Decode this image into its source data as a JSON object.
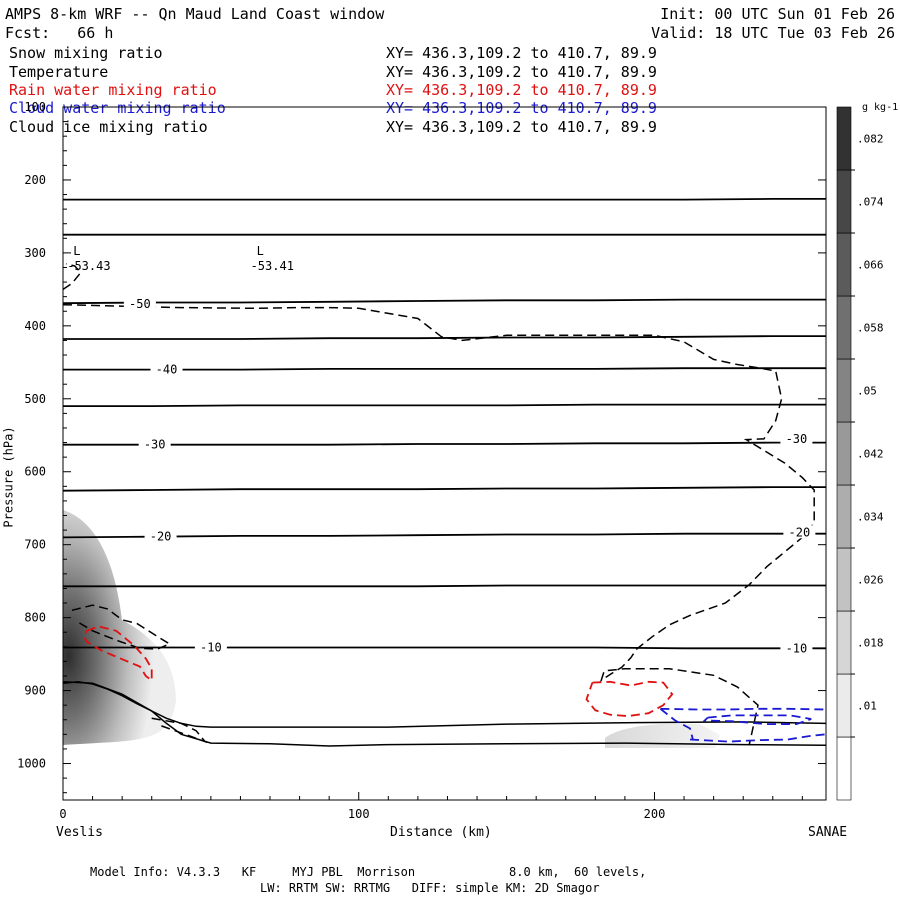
{
  "header": {
    "title": "AMPS 8-km WRF -- Qn Maud Land Coast window",
    "init": "Init: 00 UTC Sun 01 Feb 26",
    "fcst": "Fcst:   66 h",
    "valid": "Valid: 18 UTC Tue 03 Feb 26"
  },
  "fields": [
    {
      "name": "Snow mixing ratio",
      "xy": "XY= 436.3,109.2 to 410.7, 89.9",
      "color": "#000000"
    },
    {
      "name": "Temperature",
      "xy": "XY= 436.3,109.2 to 410.7, 89.9",
      "color": "#000000"
    },
    {
      "name": "Rain water mixing ratio",
      "xy": "XY= 436.3,109.2 to 410.7, 89.9",
      "color": "#e01010"
    },
    {
      "name": "Cloud water mixing ratio",
      "xy": "XY= 436.3,109.2 to 410.7, 89.9",
      "color": "#1a1ad0"
    },
    {
      "name": "Cloud ice mixing ratio",
      "xy": "XY= 436.3,109.2 to 410.7, 89.9",
      "color": "#000000"
    }
  ],
  "footer": {
    "line1": "Model Info: V4.3.3   KF     MYJ PBL  Morrison             8.0 km,  60 levels,",
    "line2": "LW: RRTM SW: RRTMG   DIFF: simple KM: 2D Smagor"
  },
  "chart_data": {
    "type": "cross-section",
    "ylabel": "Pressure (hPa)",
    "xlabel": "Distance (km)",
    "x_start_label": "Veslis",
    "x_end_label": "SANAE",
    "xlim": [
      0,
      258
    ],
    "ylim": [
      100,
      1050
    ],
    "yticks": [
      100,
      200,
      300,
      400,
      500,
      600,
      700,
      800,
      900,
      1000
    ],
    "xticks": [
      0,
      100,
      200
    ],
    "colorbar": {
      "unit": "g kg-1",
      "labels": [
        ".01",
        ".018",
        ".026",
        ".034",
        ".042",
        ".05",
        ".058",
        ".066",
        ".074",
        ".082"
      ]
    },
    "lows": [
      {
        "symbol": "L",
        "value": "-53.43",
        "x_km": 2,
        "p": 318
      },
      {
        "symbol": "L",
        "value": "-53.41",
        "x_km": 64,
        "p": 318
      }
    ],
    "temperature_isotherms_x": [
      0,
      30,
      60,
      90,
      120,
      150,
      180,
      210,
      240,
      258
    ],
    "temperature_isotherms": [
      {
        "p": [
          227,
          227,
          227,
          227,
          227,
          227,
          227,
          227,
          226,
          226
        ]
      },
      {
        "p": [
          275,
          275,
          275,
          275,
          275,
          275,
          275,
          275,
          275,
          275
        ]
      },
      {
        "p": [
          369,
          368,
          368,
          367,
          366,
          365,
          365,
          364,
          364,
          364
        ]
      },
      {
        "p": [
          418,
          418,
          418,
          417,
          417,
          416,
          416,
          415,
          414,
          414
        ]
      },
      {
        "p": [
          460,
          460,
          460,
          459,
          459,
          459,
          459,
          458,
          458,
          458
        ]
      },
      {
        "p": [
          510,
          510,
          509,
          509,
          509,
          509,
          508,
          508,
          508,
          508
        ]
      },
      {
        "p": [
          563,
          563,
          563,
          563,
          562,
          562,
          561,
          561,
          560,
          560
        ]
      },
      {
        "p": [
          626,
          625,
          624,
          624,
          624,
          623,
          623,
          622,
          621,
          621
        ]
      },
      {
        "p": [
          690,
          689,
          688,
          688,
          687,
          686,
          686,
          685,
          685,
          685
        ]
      },
      {
        "p": [
          757,
          757,
          757,
          757,
          757,
          756,
          756,
          756,
          756,
          756
        ]
      },
      {
        "p": [
          841,
          841,
          841,
          841,
          841,
          841,
          841,
          842,
          842,
          842
        ]
      }
    ],
    "temperature_labels": [
      {
        "text": "-50",
        "x_km": 26,
        "p": 370
      },
      {
        "text": "-40",
        "x_km": 35,
        "p": 460
      },
      {
        "text": "-30",
        "x_km": 31,
        "p": 563
      },
      {
        "text": "-20",
        "x_km": 33,
        "p": 689
      },
      {
        "text": "-10",
        "x_km": 50,
        "p": 841
      },
      {
        "text": "-30",
        "x_km": 248,
        "p": 555
      },
      {
        "text": "-20",
        "x_km": 249,
        "p": 683
      },
      {
        "text": "-10",
        "x_km": 248,
        "p": 842
      }
    ],
    "surface_lines": [
      {
        "x": [
          0,
          5,
          10,
          15,
          20,
          25,
          30,
          35,
          40,
          45,
          50,
          70,
          90,
          110,
          150,
          190,
          230,
          258
        ],
        "p": [
          890,
          888,
          891,
          898,
          907,
          918,
          928,
          938,
          945,
          949,
          950,
          950,
          950,
          950,
          946,
          944,
          943,
          945
        ]
      },
      {
        "x": [
          0,
          10,
          20,
          30,
          35,
          40,
          50,
          70,
          90,
          110,
          150,
          190,
          230,
          258
        ],
        "p": [
          888,
          890,
          905,
          928,
          945,
          960,
          972,
          973,
          976,
          974,
          973,
          972,
          974,
          975
        ]
      }
    ],
    "cloud_ice_contours": [
      {
        "x": [
          0,
          40,
          65,
          80,
          90,
          100,
          120,
          128,
          135,
          150,
          170,
          185,
          200,
          210,
          220,
          228,
          236,
          241,
          243,
          241,
          237,
          231,
          244,
          250,
          254,
          254,
          250,
          244,
          238,
          232,
          224,
          212,
          205,
          199,
          194,
          192,
          189,
          185,
          182,
          183,
          190,
          205,
          220,
          228,
          235,
          232
        ],
        "p": [
          371,
          375,
          376,
          375,
          375,
          376,
          390,
          415,
          420,
          413,
          413,
          413,
          413,
          422,
          446,
          453,
          458,
          462,
          500,
          530,
          555,
          556,
          588,
          608,
          625,
          670,
          690,
          710,
          730,
          755,
          780,
          797,
          810,
          827,
          843,
          855,
          868,
          878,
          886,
          873,
          870,
          870,
          879,
          895,
          920,
          975
        ]
      },
      {
        "x": [
          0,
          3,
          6,
          4,
          1
        ],
        "p": [
          350,
          342,
          327,
          318,
          315
        ]
      },
      {
        "x": [
          3,
          10,
          15,
          20,
          25,
          32,
          36,
          32,
          26,
          18,
          10,
          5
        ],
        "p": [
          790,
          783,
          788,
          803,
          808,
          826,
          836,
          843,
          842,
          831,
          818,
          806
        ]
      },
      {
        "x": [
          30,
          40,
          45,
          48,
          40,
          33
        ],
        "p": [
          938,
          945,
          955,
          970,
          958,
          948
        ]
      }
    ],
    "rain_water_contours": [
      {
        "x": [
          8,
          12,
          18,
          24,
          28,
          30,
          30,
          28,
          26,
          20,
          13,
          8,
          7,
          8
        ],
        "p": [
          818,
          812,
          818,
          838,
          856,
          870,
          886,
          880,
          867,
          857,
          845,
          833,
          825,
          818
        ]
      },
      {
        "x": [
          179,
          185,
          192,
          198,
          203,
          206,
          203,
          198,
          191,
          185,
          180,
          177,
          179
        ],
        "p": [
          889,
          888,
          893,
          888,
          889,
          905,
          920,
          931,
          935,
          933,
          927,
          912,
          889
        ]
      }
    ],
    "cloud_water_contours": [
      {
        "x": [
          202,
          215,
          225,
          235,
          245,
          258
        ],
        "p": [
          925,
          926,
          926,
          925,
          925,
          926
        ]
      },
      {
        "x": [
          212,
          225,
          235,
          245,
          253,
          258
        ],
        "p": [
          967,
          970,
          968,
          967,
          962,
          960
        ]
      },
      {
        "x": [
          202,
          207,
          212,
          213
        ],
        "p": [
          925,
          941,
          952,
          967
        ]
      },
      {
        "x": [
          218,
          226,
          235,
          246,
          253,
          248,
          238,
          226,
          217,
          218
        ],
        "p": [
          937,
          934,
          934,
          934,
          939,
          946,
          946,
          942,
          941,
          937
        ]
      }
    ]
  }
}
